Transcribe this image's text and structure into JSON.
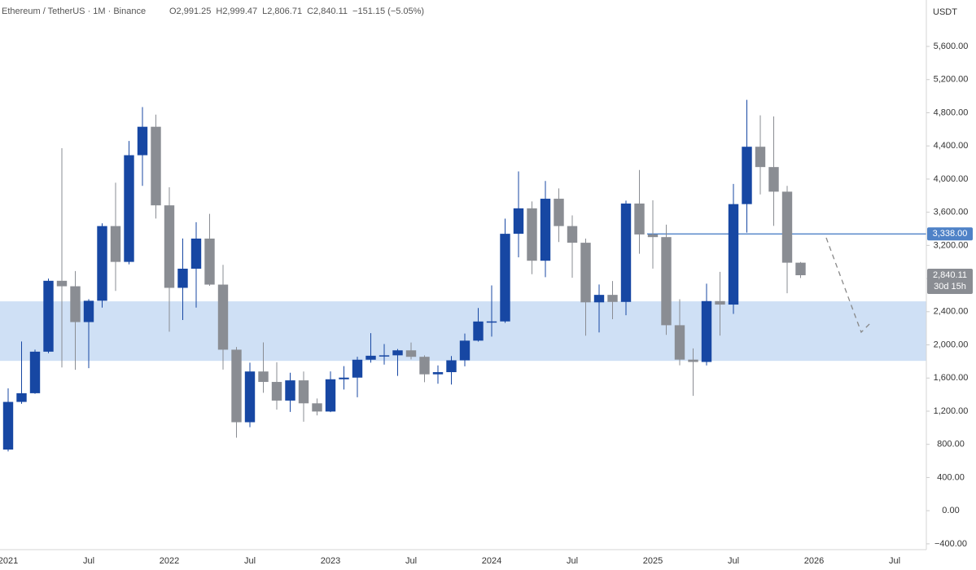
{
  "chart_data": {
    "type": "candlestick",
    "header": {
      "symbol": "Ethereum / TetherUS · 1M · Binance",
      "ohlc": [
        "O2,991.25",
        "H2,999.47",
        "L2,806.71",
        "C2,840.11",
        "−151.15 (−5.05%)"
      ]
    },
    "currency": "USDT",
    "x": [
      "2021-01",
      "2021-02",
      "2021-03",
      "2021-04",
      "2021-05",
      "2021-06",
      "2021-07",
      "2021-08",
      "2021-09",
      "2021-10",
      "2021-11",
      "2021-12",
      "2022-01",
      "2022-02",
      "2022-03",
      "2022-04",
      "2022-05",
      "2022-06",
      "2022-07",
      "2022-08",
      "2022-09",
      "2022-10",
      "2022-11",
      "2022-12",
      "2023-01",
      "2023-02",
      "2023-03",
      "2023-04",
      "2023-05",
      "2023-06",
      "2023-07",
      "2023-08",
      "2023-09",
      "2023-10",
      "2023-11",
      "2023-12",
      "2024-01",
      "2024-02",
      "2024-03",
      "2024-04",
      "2024-05",
      "2024-06",
      "2024-07",
      "2024-08",
      "2024-09",
      "2024-10",
      "2024-11",
      "2024-12",
      "2025-01",
      "2025-02",
      "2025-03",
      "2025-04",
      "2025-05",
      "2025-06",
      "2025-07",
      "2025-08",
      "2025-09",
      "2025-10",
      "2025-11",
      "2025-12"
    ],
    "open": [
      737,
      1312,
      1417,
      1918,
      2773,
      2707,
      2275,
      2532,
      3433,
      3001,
      4288,
      4631,
      3683,
      2688,
      2919,
      3282,
      2727,
      1942,
      1067,
      1679,
      1553,
      1328,
      1572,
      1295,
      1196,
      1585,
      1605,
      1821,
      1869,
      1874,
      1934,
      1856,
      1645,
      1671,
      1814,
      2051,
      2282,
      2283,
      3340,
      3647,
      3015,
      3763,
      3433,
      3232,
      2513,
      2603,
      2518,
      3705,
      3332,
      3300,
      2237,
      1822,
      1794,
      2528,
      2486,
      3698,
      4390,
      4145,
      3848,
      2991.25
    ],
    "high": [
      1476,
      2041,
      1943,
      2800,
      4372,
      2891,
      2551,
      3466,
      3956,
      4460,
      4868,
      4778,
      3901,
      3283,
      3480,
      3580,
      2965,
      1975,
      1785,
      2030,
      1790,
      1664,
      1678,
      1353,
      1680,
      1744,
      1857,
      2141,
      2010,
      1950,
      2029,
      1874,
      1752,
      1865,
      2137,
      2445,
      2717,
      3523,
      4093,
      3730,
      3977,
      3887,
      3562,
      3282,
      2728,
      2770,
      3740,
      4109,
      3744,
      3450,
      2550,
      1957,
      2738,
      2880,
      3941,
      4956,
      4769,
      4755,
      3918,
      2999.47
    ],
    "low": [
      715,
      1290,
      1410,
      1900,
      1728,
      1700,
      1719,
      2450,
      2651,
      2971,
      3918,
      3524,
      2159,
      2300,
      2450,
      2713,
      1702,
      881,
      1007,
      1422,
      1220,
      1191,
      1073,
      1150,
      1189,
      1461,
      1368,
      1785,
      1762,
      1626,
      1825,
      1550,
      1531,
      1521,
      1741,
      2039,
      2100,
      2265,
      3056,
      2852,
      2817,
      3240,
      2810,
      2111,
      2150,
      2310,
      2357,
      3099,
      2920,
      2120,
      1754,
      1385,
      1752,
      2112,
      2373,
      3354,
      3815,
      3435,
      2623,
      2806.71
    ],
    "close": [
      1312,
      1417,
      1918,
      2773,
      2707,
      2275,
      2532,
      3433,
      3001,
      4288,
      4631,
      3683,
      2688,
      2919,
      3282,
      2727,
      1942,
      1067,
      1679,
      1553,
      1328,
      1572,
      1295,
      1196,
      1585,
      1605,
      1821,
      1869,
      1874,
      1934,
      1856,
      1645,
      1671,
      1814,
      2051,
      2282,
      2283,
      3340,
      3647,
      3015,
      3763,
      3433,
      3232,
      2513,
      2603,
      2518,
      3705,
      3332,
      3300,
      2237,
      1822,
      1794,
      2528,
      2486,
      3698,
      4390,
      4145,
      3848,
      2991.25,
      2840.11
    ],
    "up_color": "#1747a3",
    "down_color": "#8a8d93",
    "zone": [
      1807,
      2525
    ],
    "zone_color": "#cfe0f5",
    "hline": {
      "value": 3338,
      "label": "3,338.00",
      "color": "#4f82c7"
    },
    "last_price": {
      "value": 2840.11,
      "label": "2,840.11",
      "countdown": "30d 15h"
    },
    "ylim": [
      -470,
      6160
    ],
    "yticks": [
      {
        "value": -400,
        "label": "−400.00"
      },
      {
        "value": 0,
        "label": "0.00"
      },
      {
        "value": 400,
        "label": "400.00"
      },
      {
        "value": 800,
        "label": "800.00"
      },
      {
        "value": 1200,
        "label": "1,200.00"
      },
      {
        "value": 1600,
        "label": "1,600.00"
      },
      {
        "value": 2000,
        "label": "2,000.00"
      },
      {
        "value": 2400,
        "label": "2,400.00"
      },
      {
        "value": 2800,
        "label": "2,800.00"
      },
      {
        "value": 3200,
        "label": "3,200.00"
      },
      {
        "value": 3600,
        "label": "3,600.00"
      },
      {
        "value": 4000,
        "label": "4,000.00"
      },
      {
        "value": 4400,
        "label": "4,400.00"
      },
      {
        "value": 4800,
        "label": "4,800.00"
      },
      {
        "value": 5200,
        "label": "5,200.00"
      },
      {
        "value": 5600,
        "label": "5,600.00"
      }
    ],
    "xticks": [
      {
        "value": "2021-01",
        "label": "2021"
      },
      {
        "value": "2021-07",
        "label": "Jul"
      },
      {
        "value": "2022-01",
        "label": "2022"
      },
      {
        "value": "2022-07",
        "label": "Jul"
      },
      {
        "value": "2023-01",
        "label": "2023"
      },
      {
        "value": "2023-07",
        "label": "Jul"
      },
      {
        "value": "2024-01",
        "label": "2024"
      },
      {
        "value": "2024-07",
        "label": "Jul"
      },
      {
        "value": "2025-01",
        "label": "2025"
      },
      {
        "value": "2025-07",
        "label": "Jul"
      },
      {
        "value": "2026-01",
        "label": "2026"
      },
      {
        "value": "2026-07",
        "label": "Jul"
      }
    ],
    "grid": false
  }
}
